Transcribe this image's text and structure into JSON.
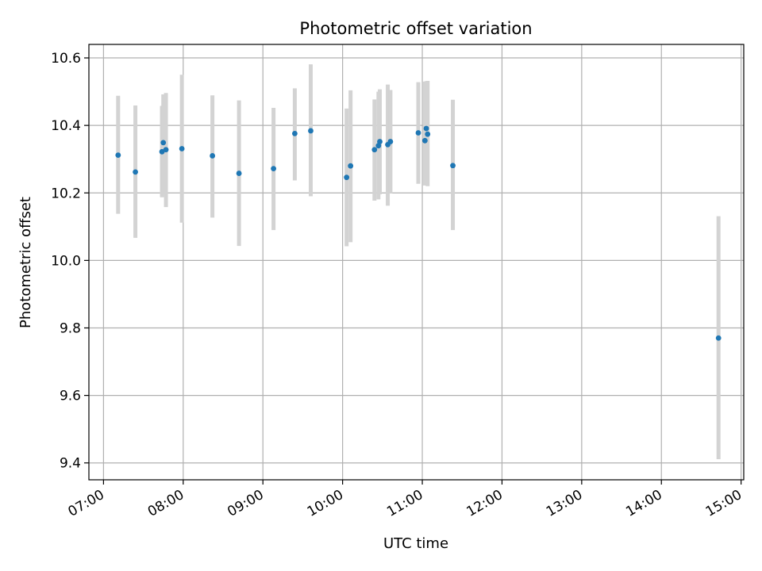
{
  "chart_data": {
    "type": "scatter",
    "title": "Photometric offset variation",
    "xlabel": "UTC time",
    "ylabel": "Photometric offset",
    "x_unit": "UTC time (HH:MM)",
    "xlim": [
      "06:49",
      "15:02"
    ],
    "ylim": [
      9.35,
      10.64
    ],
    "x_ticks": [
      "07:00",
      "08:00",
      "09:00",
      "10:00",
      "11:00",
      "12:00",
      "13:00",
      "14:00",
      "15:00"
    ],
    "y_ticks": [
      "9.4",
      "9.6",
      "9.8",
      "10.0",
      "10.2",
      "10.4",
      "10.6"
    ],
    "grid": true,
    "legend": "none",
    "colors": {
      "point": "#1f77b4",
      "errorbar": "#d3d3d3",
      "grid": "#b0b0b0"
    },
    "points": [
      {
        "x": "07:11",
        "y": 10.312,
        "ylow": 10.138,
        "yhigh": 10.488
      },
      {
        "x": "07:24",
        "y": 10.262,
        "ylow": 10.067,
        "yhigh": 10.459
      },
      {
        "x": "07:44",
        "y": 10.322,
        "ylow": 10.187,
        "yhigh": 10.458
      },
      {
        "x": "07:45",
        "y": 10.349,
        "ylow": 10.203,
        "yhigh": 10.492
      },
      {
        "x": "07:47",
        "y": 10.328,
        "ylow": 10.158,
        "yhigh": 10.496
      },
      {
        "x": "07:59",
        "y": 10.331,
        "ylow": 10.112,
        "yhigh": 10.55
      },
      {
        "x": "08:22",
        "y": 10.31,
        "ylow": 10.127,
        "yhigh": 10.489
      },
      {
        "x": "08:42",
        "y": 10.258,
        "ylow": 10.043,
        "yhigh": 10.474
      },
      {
        "x": "09:08",
        "y": 10.272,
        "ylow": 10.09,
        "yhigh": 10.452
      },
      {
        "x": "09:24",
        "y": 10.376,
        "ylow": 10.237,
        "yhigh": 10.51
      },
      {
        "x": "09:36",
        "y": 10.384,
        "ylow": 10.19,
        "yhigh": 10.581
      },
      {
        "x": "10:03",
        "y": 10.246,
        "ylow": 10.042,
        "yhigh": 10.45
      },
      {
        "x": "10:06",
        "y": 10.28,
        "ylow": 10.054,
        "yhigh": 10.504
      },
      {
        "x": "10:24",
        "y": 10.328,
        "ylow": 10.177,
        "yhigh": 10.477
      },
      {
        "x": "10:27",
        "y": 10.34,
        "ylow": 10.181,
        "yhigh": 10.5
      },
      {
        "x": "10:28",
        "y": 10.352,
        "ylow": 10.196,
        "yhigh": 10.507
      },
      {
        "x": "10:34",
        "y": 10.343,
        "ylow": 10.162,
        "yhigh": 10.521
      },
      {
        "x": "10:36",
        "y": 10.352,
        "ylow": 10.199,
        "yhigh": 10.505
      },
      {
        "x": "10:57",
        "y": 10.378,
        "ylow": 10.227,
        "yhigh": 10.528
      },
      {
        "x": "11:02",
        "y": 10.355,
        "ylow": 10.222,
        "yhigh": 10.53
      },
      {
        "x": "11:03",
        "y": 10.391,
        "ylow": 10.223,
        "yhigh": 10.531
      },
      {
        "x": "11:04",
        "y": 10.374,
        "ylow": 10.22,
        "yhigh": 10.532
      },
      {
        "x": "11:23",
        "y": 10.281,
        "ylow": 10.09,
        "yhigh": 10.476
      },
      {
        "x": "14:43",
        "y": 9.77,
        "ylow": 9.411,
        "yhigh": 10.131
      }
    ]
  }
}
